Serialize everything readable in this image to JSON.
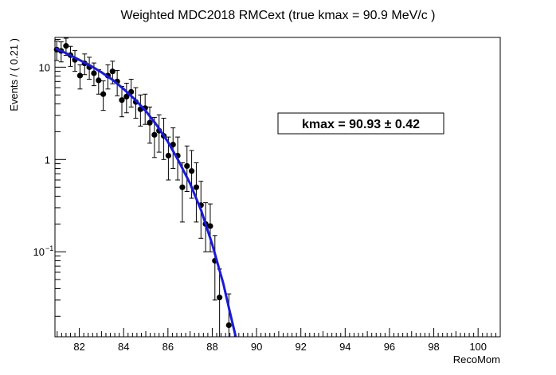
{
  "chart_data": {
    "type": "scatter",
    "title": "Weighted MDC2018 RMCext (true kmax = 90.9 MeV/c )",
    "xlabel": "RecoMom",
    "ylabel": "Events / ( 0.21 )",
    "xlim": [
      80.9,
      101.0
    ],
    "ylim": [
      0.012,
      21
    ],
    "yscale": "log",
    "grid": false,
    "x_ticks": [
      82,
      84,
      86,
      88,
      90,
      92,
      94,
      96,
      98,
      100
    ],
    "y_ticks": [
      {
        "value": 10,
        "label": "10"
      },
      {
        "value": 1,
        "label": "1"
      },
      {
        "value": 0.1,
        "label": "10",
        "exponent": "−1"
      }
    ],
    "annotation": {
      "label": "kmax =  90.93 ± 0.42"
    },
    "marker_color": "#000000",
    "fit_color": "#1a1ad6",
    "series": [
      {
        "kind": "data",
        "points": [
          {
            "x": 80.98,
            "y": 15.5,
            "lo": 11.8,
            "hi": 19.2
          },
          {
            "x": 81.18,
            "y": 15.0,
            "lo": 11.4,
            "hi": 18.8
          },
          {
            "x": 81.4,
            "y": 17.0,
            "lo": 13.4,
            "hi": 20.6
          },
          {
            "x": 81.6,
            "y": 13.5,
            "lo": 10.2,
            "hi": 16.8
          },
          {
            "x": 81.8,
            "y": 12.0,
            "lo": 9.0,
            "hi": 15.1
          },
          {
            "x": 82.03,
            "y": 8.1,
            "lo": 5.8,
            "hi": 10.6
          },
          {
            "x": 82.24,
            "y": 11.0,
            "lo": 8.3,
            "hi": 13.9
          },
          {
            "x": 82.45,
            "y": 10.0,
            "lo": 7.4,
            "hi": 12.8
          },
          {
            "x": 82.66,
            "y": 8.6,
            "lo": 6.3,
            "hi": 11.1
          },
          {
            "x": 82.87,
            "y": 7.2,
            "lo": 5.1,
            "hi": 9.4
          },
          {
            "x": 83.08,
            "y": 5.1,
            "lo": 3.4,
            "hi": 7.1
          },
          {
            "x": 83.29,
            "y": 8.1,
            "lo": 5.8,
            "hi": 10.6
          },
          {
            "x": 83.5,
            "y": 9.0,
            "lo": 6.6,
            "hi": 11.6
          },
          {
            "x": 83.71,
            "y": 7.0,
            "lo": 4.9,
            "hi": 9.2
          },
          {
            "x": 83.92,
            "y": 4.4,
            "lo": 2.9,
            "hi": 6.2
          },
          {
            "x": 84.13,
            "y": 4.8,
            "lo": 3.2,
            "hi": 6.7
          },
          {
            "x": 84.34,
            "y": 5.4,
            "lo": 3.7,
            "hi": 7.4
          },
          {
            "x": 84.55,
            "y": 4.2,
            "lo": 2.8,
            "hi": 6.0
          },
          {
            "x": 84.76,
            "y": 3.5,
            "lo": 2.3,
            "hi": 5.0
          },
          {
            "x": 84.97,
            "y": 3.6,
            "lo": 2.4,
            "hi": 5.1
          },
          {
            "x": 85.18,
            "y": 2.5,
            "lo": 1.5,
            "hi": 3.7
          },
          {
            "x": 85.39,
            "y": 1.85,
            "lo": 1.05,
            "hi": 2.85
          },
          {
            "x": 85.6,
            "y": 2.05,
            "lo": 1.2,
            "hi": 3.05
          },
          {
            "x": 85.81,
            "y": 1.8,
            "lo": 1.0,
            "hi": 2.8
          },
          {
            "x": 86.02,
            "y": 1.1,
            "lo": 0.6,
            "hi": 1.75
          },
          {
            "x": 86.23,
            "y": 1.45,
            "lo": 0.8,
            "hi": 2.2
          },
          {
            "x": 86.44,
            "y": 1.1,
            "lo": 0.6,
            "hi": 1.75
          },
          {
            "x": 86.65,
            "y": 0.5,
            "lo": 0.21,
            "hi": 0.92
          },
          {
            "x": 86.86,
            "y": 0.85,
            "lo": 0.45,
            "hi": 1.4
          },
          {
            "x": 87.07,
            "y": 0.75,
            "lo": 0.38,
            "hi": 1.25
          },
          {
            "x": 87.28,
            "y": 0.5,
            "lo": 0.21,
            "hi": 0.92
          },
          {
            "x": 87.49,
            "y": 0.32,
            "lo": 0.14,
            "hi": 0.58
          },
          {
            "x": 87.7,
            "y": 0.2,
            "lo": 0.1,
            "hi": 0.34
          },
          {
            "x": 87.91,
            "y": 0.19,
            "lo": 0.1,
            "hi": 0.33
          },
          {
            "x": 88.12,
            "y": 0.08,
            "lo": 0.03,
            "hi": 0.15
          },
          {
            "x": 88.33,
            "y": 0.032,
            "lo": 0.012,
            "hi": 0.065
          },
          {
            "x": 88.75,
            "y": 0.016,
            "lo": 0.012,
            "hi": 0.035
          }
        ]
      },
      {
        "kind": "fit",
        "points": [
          {
            "x": 80.9,
            "y": 16.1
          },
          {
            "x": 81.5,
            "y": 13.8
          },
          {
            "x": 82.0,
            "y": 12.0
          },
          {
            "x": 82.5,
            "y": 10.4
          },
          {
            "x": 83.0,
            "y": 8.8
          },
          {
            "x": 83.5,
            "y": 7.3
          },
          {
            "x": 84.0,
            "y": 5.8
          },
          {
            "x": 84.5,
            "y": 4.5
          },
          {
            "x": 85.0,
            "y": 3.35
          },
          {
            "x": 85.5,
            "y": 2.35
          },
          {
            "x": 86.0,
            "y": 1.55
          },
          {
            "x": 86.5,
            "y": 0.95
          },
          {
            "x": 87.0,
            "y": 0.55
          },
          {
            "x": 87.5,
            "y": 0.28
          },
          {
            "x": 88.0,
            "y": 0.12
          },
          {
            "x": 88.5,
            "y": 0.045
          },
          {
            "x": 88.8,
            "y": 0.022
          },
          {
            "x": 89.1,
            "y": 0.011
          }
        ]
      }
    ]
  }
}
